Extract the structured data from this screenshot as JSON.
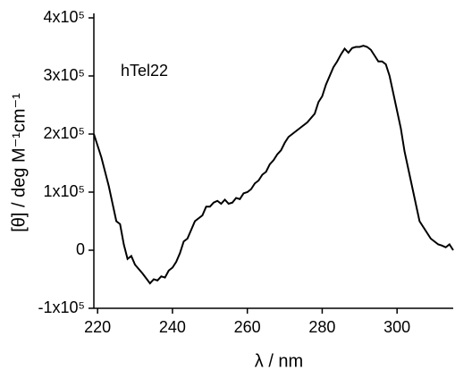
{
  "chart_data": {
    "type": "line",
    "annotation": "hTel22",
    "x_label": "λ / nm",
    "y_label": "[θ] / deg M⁻¹cm⁻¹",
    "x": [
      219,
      221,
      223,
      225,
      226,
      227,
      228,
      229,
      230,
      232,
      234,
      235,
      236,
      237,
      238,
      239,
      240,
      241,
      242,
      243,
      244,
      245,
      246,
      248,
      249,
      250,
      251,
      252,
      253,
      254,
      255,
      256,
      257,
      258,
      259,
      260,
      261,
      262,
      263,
      264,
      265,
      266,
      267,
      268,
      269,
      270,
      271,
      272,
      274,
      276,
      278,
      279,
      280,
      281,
      282,
      283,
      284,
      285,
      286,
      287,
      288,
      289,
      290,
      291,
      292,
      293,
      294,
      295,
      296,
      297,
      298,
      299,
      300,
      301,
      302,
      303,
      304,
      305,
      306,
      307,
      308,
      309,
      310,
      311,
      312,
      313,
      314,
      315
    ],
    "series": [
      {
        "color": "#000000",
        "values": [
          200000,
          160000,
          110000,
          50000,
          45000,
          10000,
          -15000,
          -10000,
          -25000,
          -40000,
          -57000,
          -50000,
          -52000,
          -45000,
          -47000,
          -35000,
          -30000,
          -20000,
          -5000,
          15000,
          20000,
          35000,
          50000,
          60000,
          75000,
          75000,
          82000,
          85000,
          80000,
          87000,
          80000,
          82000,
          90000,
          88000,
          98000,
          100000,
          105000,
          115000,
          120000,
          130000,
          135000,
          148000,
          155000,
          165000,
          172000,
          185000,
          195000,
          200000,
          210000,
          220000,
          235000,
          255000,
          265000,
          285000,
          300000,
          315000,
          325000,
          337000,
          347000,
          340000,
          348000,
          350000,
          350000,
          352000,
          350000,
          345000,
          335000,
          325000,
          325000,
          320000,
          300000,
          270000,
          240000,
          210000,
          170000,
          140000,
          110000,
          80000,
          50000,
          40000,
          30000,
          20000,
          15000,
          10000,
          8000,
          5000,
          10000,
          0
        ]
      }
    ],
    "xlim": [
      219,
      315
    ],
    "xticks": [
      220,
      240,
      260,
      280,
      300
    ],
    "ylim": [
      -100000,
      400000
    ],
    "yticks": [
      {
        "value": -100000,
        "label": "-1x10⁵"
      },
      0,
      {
        "value": 100000,
        "label": "1x10⁵"
      },
      {
        "value": 200000,
        "label": "2x10⁵"
      },
      {
        "value": 300000,
        "label": "3x10⁵"
      },
      {
        "value": 400000,
        "label": "4x10⁵"
      }
    ]
  }
}
